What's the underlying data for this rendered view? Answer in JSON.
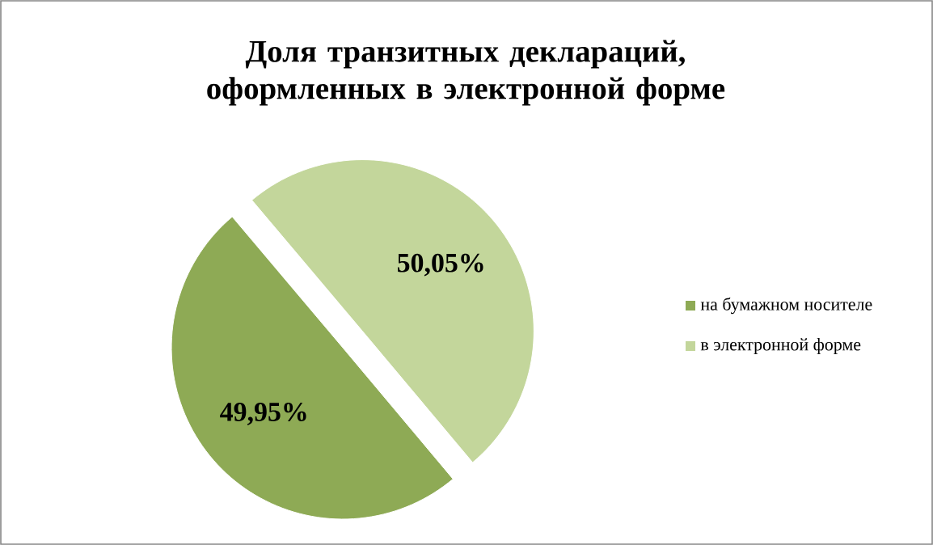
{
  "chart_data": {
    "type": "pie",
    "title": "Доля транзитных деклараций, оформленных в электронной форме",
    "categories": [
      "на бумажном носителе",
      "в электронной форме"
    ],
    "values": [
      49.95,
      50.05
    ],
    "colors": [
      "#8eaa55",
      "#c3d69b"
    ],
    "value_labels": [
      "49,95%",
      "50,05%"
    ],
    "legend": "right"
  }
}
